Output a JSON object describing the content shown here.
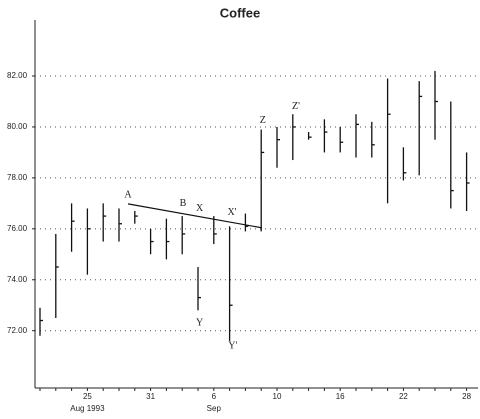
{
  "chart_data": {
    "type": "hlc",
    "title": "Coffee",
    "categories": [
      null,
      null,
      null,
      "25",
      null,
      null,
      null,
      "31",
      null,
      null,
      null,
      "6",
      null,
      null,
      null,
      "10",
      null,
      null,
      null,
      "16",
      null,
      null,
      null,
      "22",
      null,
      null,
      null,
      "28"
    ],
    "categories2": [
      null,
      null,
      null,
      "Aug 1993",
      null,
      null,
      null,
      null,
      null,
      null,
      null,
      "Sep",
      null,
      null,
      null,
      null,
      null,
      null,
      null,
      null,
      null,
      null,
      null,
      null,
      null,
      null,
      null,
      null
    ],
    "high": [
      72.9,
      75.8,
      77.0,
      76.8,
      77.0,
      76.8,
      76.7,
      76.0,
      76.4,
      76.5,
      74.5,
      76.5,
      76.1,
      76.6,
      79.9,
      80.0,
      80.5,
      79.8,
      80.3,
      80.0,
      80.5,
      80.2,
      81.9,
      79.2,
      81.8,
      82.2,
      81.0,
      79.0
    ],
    "low": [
      71.8,
      72.5,
      75.1,
      74.2,
      75.5,
      75.5,
      76.2,
      75.0,
      74.8,
      75.0,
      72.8,
      75.4,
      71.6,
      75.9,
      75.9,
      78.4,
      78.7,
      79.5,
      79.0,
      79.0,
      78.8,
      78.8,
      77.0,
      77.9,
      78.1,
      79.5,
      76.8,
      76.7
    ],
    "close": [
      72.4,
      74.5,
      76.3,
      76.0,
      76.5,
      76.2,
      76.5,
      75.5,
      75.5,
      75.8,
      73.3,
      75.8,
      73.0,
      76.1,
      79.0,
      79.5,
      80.0,
      79.6,
      79.8,
      79.4,
      80.1,
      79.3,
      80.5,
      78.2,
      81.2,
      81.0,
      77.5,
      77.8
    ],
    "color": "#111111",
    "ylim": [
      69.75,
      84.2
    ],
    "yticks": [
      {
        "value": 72,
        "label": "72.00"
      },
      {
        "value": 74,
        "label": "74.00"
      },
      {
        "value": 76,
        "label": "76.00"
      },
      {
        "value": 78,
        "label": "78.00"
      },
      {
        "value": 80,
        "label": "80.00"
      },
      {
        "value": 82,
        "label": "82.00"
      }
    ],
    "grid": true,
    "trendline": {
      "x": [
        5.57,
        14.05
      ],
      "y": [
        76.98,
        76.04
      ]
    },
    "annotations": [
      {
        "text": "A",
        "x": 5.57,
        "y": 77.33
      },
      {
        "text": "B",
        "x": 9.05,
        "y": 76.98
      },
      {
        "text": "X",
        "x": 10.1,
        "y": 76.8
      },
      {
        "text": "X'",
        "x": 12.15,
        "y": 76.63
      },
      {
        "text": "Y",
        "x": 10.1,
        "y": 72.3
      },
      {
        "text": "Y'",
        "x": 12.2,
        "y": 71.4
      },
      {
        "text": "Z",
        "x": 14.1,
        "y": 80.24
      },
      {
        "text": "Z'",
        "x": 16.2,
        "y": 80.8
      }
    ]
  }
}
